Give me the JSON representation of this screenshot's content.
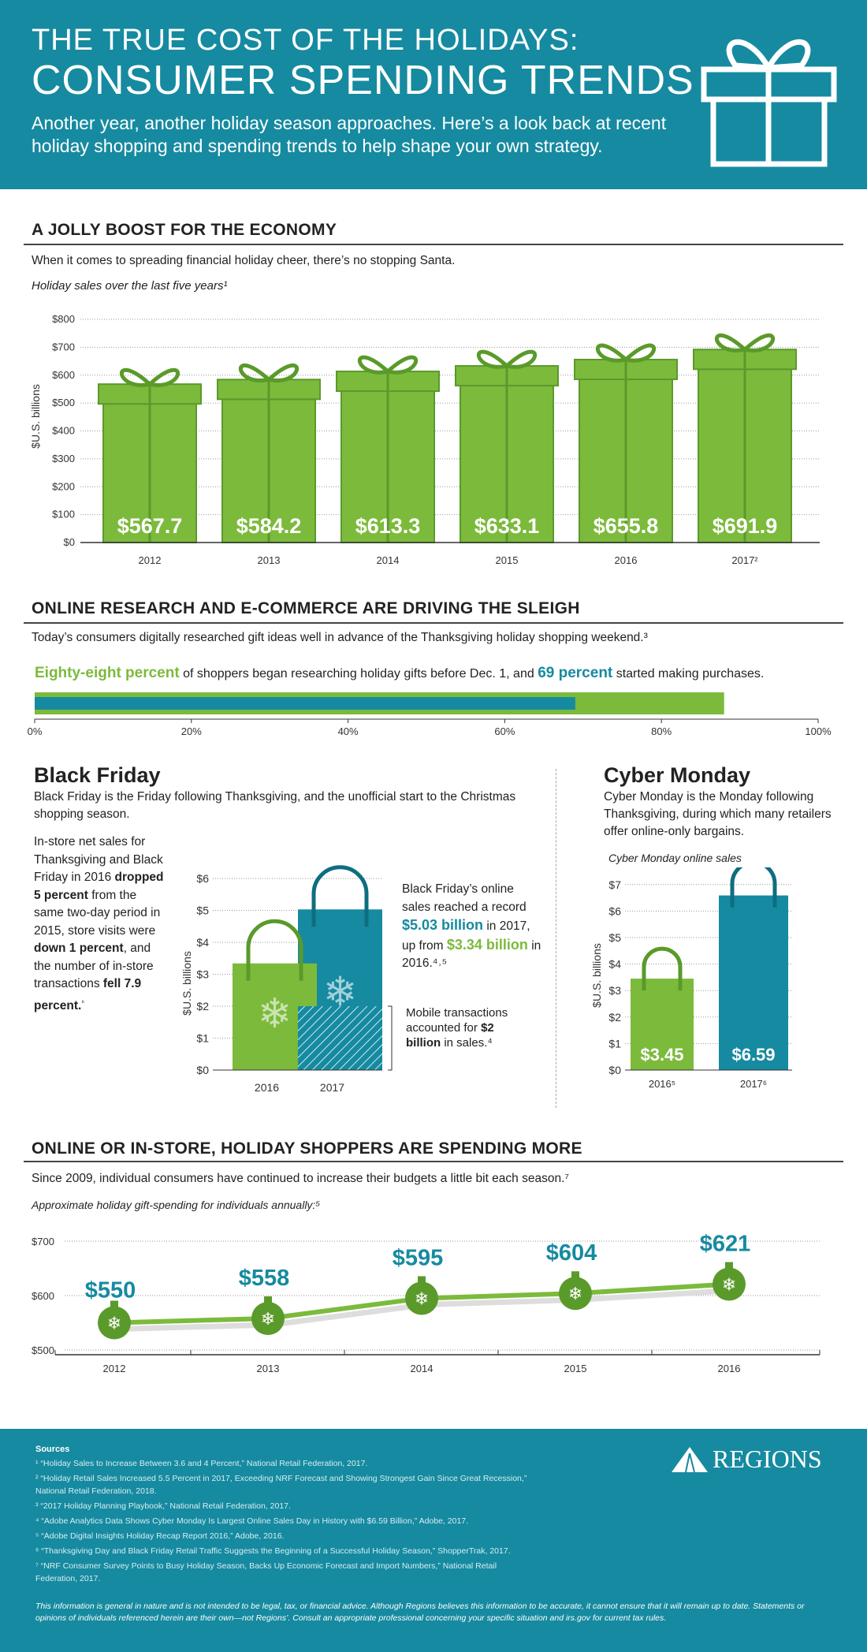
{
  "header": {
    "title_line1": "THE TRUE COST OF THE HOLIDAYS:",
    "title_line2": "CONSUMER SPENDING TRENDS",
    "subtitle": "Another year, another holiday season approaches. Here’s a look back at recent holiday shopping and spending trends to help shape your own strategy.",
    "icon": "gift-icon"
  },
  "colors": {
    "teal": "#168aa0",
    "green": "#7cba3c",
    "dark_green": "#5a9a2a"
  },
  "section1": {
    "heading": "A JOLLY BOOST FOR THE ECONOMY",
    "text": "When it comes to spreading financial holiday cheer, there’s no stopping Santa.",
    "chart_label": "Holiday sales over the last five years¹"
  },
  "section2": {
    "heading": "ONLINE RESEARCH AND E-COMMERCE ARE DRIVING THE SLEIGH",
    "text": "Today’s consumers digitally researched gift ideas well in advance of the Thanksgiving holiday shopping weekend.³",
    "stat_a": "Eighty-eight percent",
    "stat_b": " of shoppers began researching holiday gifts before Dec. 1, and ",
    "stat_c": "69 percent",
    "stat_d": " started making purchases."
  },
  "black_friday": {
    "title": "Black Friday",
    "desc": "Black Friday is the Friday following Thanksgiving, and the unofficial start to the Christmas shopping season.",
    "side_1": "In-store net sales for Thanksgiving and Black Friday in 2016 ",
    "side_2": "dropped 5 percent",
    "side_3": " from the same two-day period in 2015, store visits were ",
    "side_4": "down 1 percent",
    "side_5": ", and the number of in-store transactions ",
    "side_6": "fell 7.9 percent.",
    "side_7": "⁶",
    "note_1": "Black Friday’s online sales reached a record ",
    "note_2": "$5.03 billion",
    "note_3": " in 2017, up from ",
    "note_4": "$3.34 billion",
    "note_5": " in 2016.⁴˒⁵",
    "mobile_1": "Mobile transactions accounted for ",
    "mobile_2": "$2 billion",
    "mobile_3": " in sales.⁴"
  },
  "cyber_monday": {
    "title": "Cyber Monday",
    "desc": "Cyber Monday is the Monday following Thanksgiving, during which many retailers offer online-only bargains.",
    "chart_label": "Cyber Monday online sales"
  },
  "section4": {
    "heading": "ONLINE OR IN-STORE, HOLIDAY SHOPPERS ARE SPENDING MORE",
    "text": "Since 2009, individual consumers have continued to increase their budgets a little bit each season.⁷",
    "chart_label": "Approximate holiday gift-spending for individuals annually:⁵"
  },
  "chart_data": [
    {
      "type": "bar",
      "ylabel": "$U.S. billions",
      "categories": [
        "2012",
        "2013",
        "2014",
        "2015",
        "2016",
        "2017²"
      ],
      "values": [
        567.7,
        584.2,
        613.3,
        633.1,
        655.8,
        691.9
      ],
      "data_labels": [
        "$567.7",
        "$584.2",
        "$613.3",
        "$633.1",
        "$655.8",
        "$691.9"
      ],
      "ylim": [
        0,
        800
      ],
      "yticks": [
        "$0",
        "$100",
        "$200",
        "$300",
        "$400",
        "$500",
        "$600",
        "$700",
        "$800"
      ],
      "grid": true
    },
    {
      "type": "bar",
      "orientation": "horizontal",
      "series": [
        {
          "value": 88,
          "color": "#7cba3c"
        },
        {
          "value": 69,
          "color": "#168aa0"
        }
      ],
      "xlim": [
        0,
        100
      ],
      "xticks": [
        "0%",
        "20%",
        "40%",
        "60%",
        "80%",
        "100%"
      ]
    },
    {
      "type": "bar",
      "ylabel": "$U.S. billions",
      "categories": [
        "2016",
        "2017"
      ],
      "values": [
        3.34,
        5.03
      ],
      "mobile_2017": 2,
      "ylim": [
        0,
        6
      ],
      "yticks": [
        "$0",
        "$1",
        "$2",
        "$3",
        "$4",
        "$5",
        "$6"
      ],
      "grid": true
    },
    {
      "type": "bar",
      "ylabel": "$U.S. billions",
      "categories": [
        "2016⁵",
        "2017⁶"
      ],
      "values": [
        3.45,
        6.59
      ],
      "data_labels": [
        "$3.45",
        "$6.59"
      ],
      "ylim": [
        0,
        7
      ],
      "yticks": [
        "$0",
        "$1",
        "$2",
        "$3",
        "$4",
        "$5",
        "$6",
        "$7"
      ],
      "grid": true
    },
    {
      "type": "line",
      "categories": [
        "2012",
        "2013",
        "2014",
        "2015",
        "2016"
      ],
      "values": [
        550,
        558,
        595,
        604,
        621
      ],
      "data_labels": [
        "$550",
        "$558",
        "$595",
        "$604",
        "$621"
      ],
      "ylim": [
        500,
        700
      ],
      "yticks": [
        "$500",
        "$600",
        "$700"
      ],
      "grid": true
    }
  ],
  "footer": {
    "sources_title": "Sources",
    "sources": [
      "¹ “Holiday Sales to Increase Between 3.6 and 4 Percent,” National Retail Federation, 2017.",
      "² “Holiday Retail Sales Increased 5.5 Percent in 2017, Exceeding NRF Forecast and Showing Strongest Gain Since Great Recession,” National Retail Federation, 2018.",
      "³ “2017 Holiday Planning Playbook,” National Retail Federation, 2017.",
      "⁴ “Adobe Analytics Data Shows Cyber Monday Is Largest Online Sales Day in History with $6.59 Billion,” Adobe, 2017.",
      "⁵ “Adobe Digital Insights Holiday Recap Report 2016,” Adobe, 2016.",
      "⁶ “Thanksgiving Day and Black Friday Retail Traffic Suggests the Beginning of a Successful Holiday Season,” ShopperTrak, 2017.",
      "⁷ “NRF Consumer Survey Points to Busy Holiday Season, Backs Up Economic Forecast and Import Numbers,” National Retail Federation, 2017."
    ],
    "logo": "REGIONS",
    "disclaimer": "This information is general in nature and is not intended to be legal, tax, or financial advice. Although Regions believes this information to be accurate, it cannot ensure that it will remain up to date. Statements or opinions of individuals referenced herein are their own—not Regions’. Consult an appropriate professional concerning your specific situation and irs.gov for current tax rules."
  }
}
